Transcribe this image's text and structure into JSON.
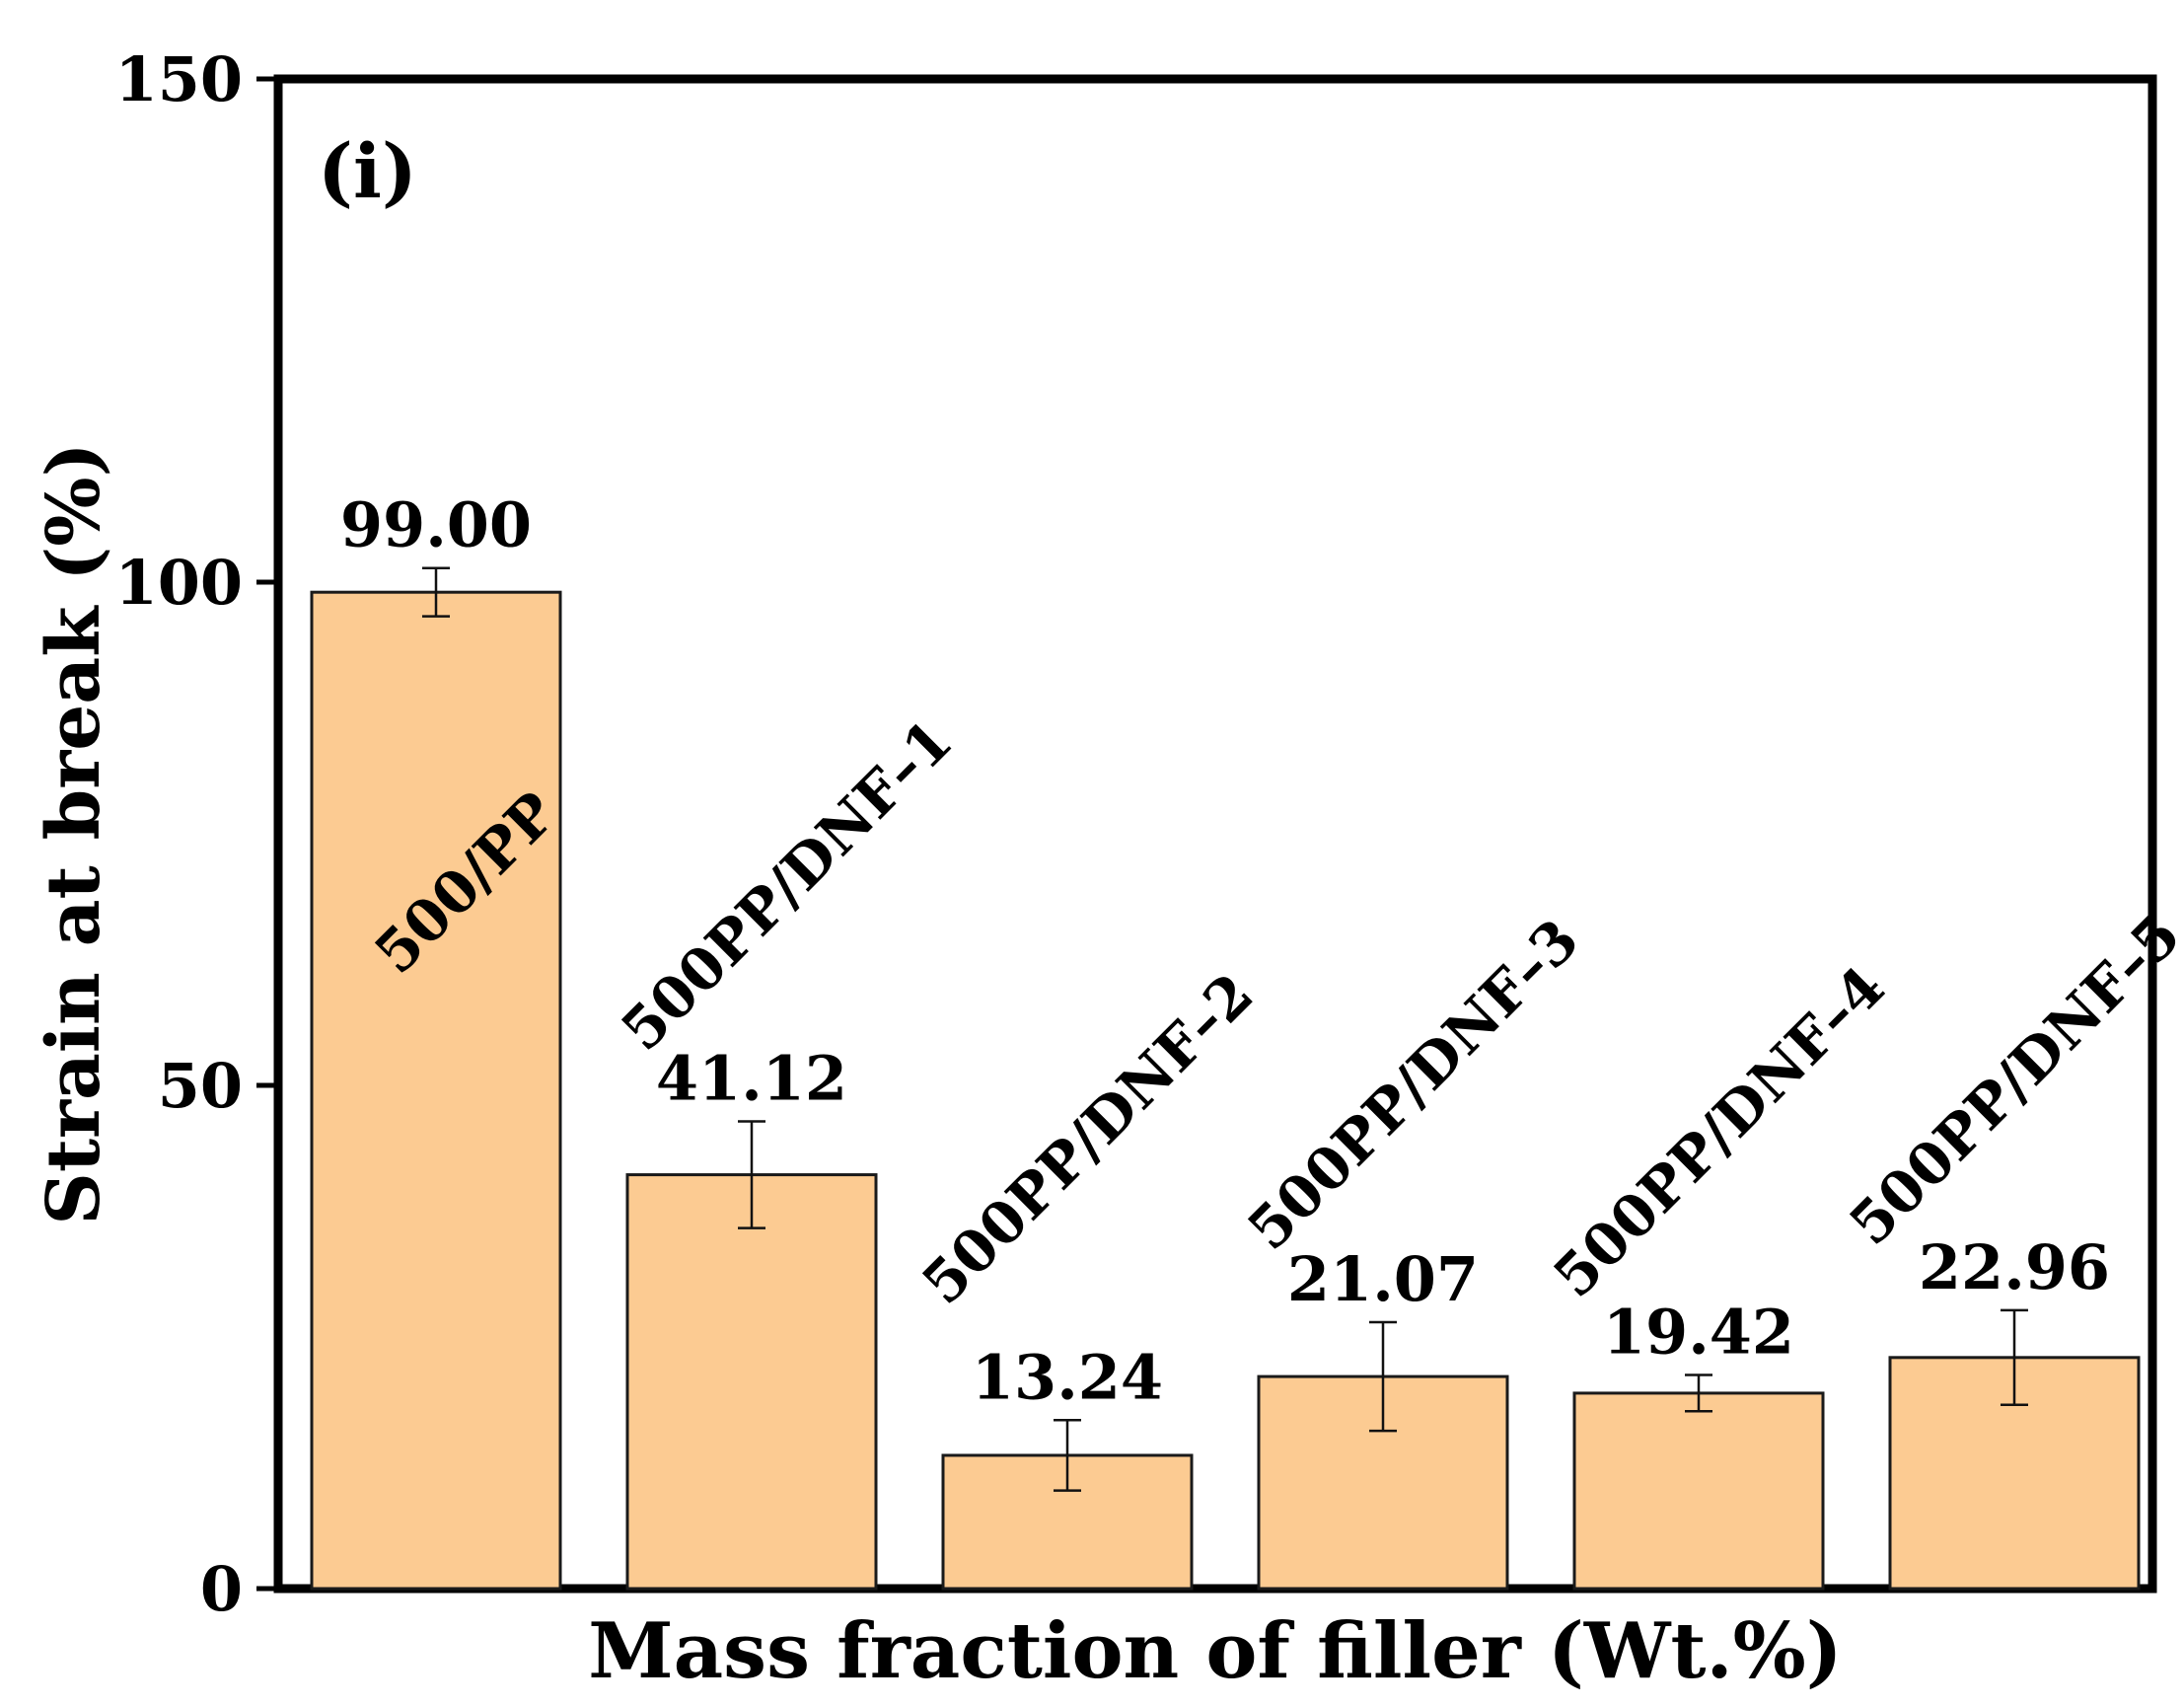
{
  "colors": {
    "bar_fill": "#FCCB92",
    "bar_stroke": "#1a1a1a",
    "axis": "#000000",
    "text": "#000000"
  },
  "chart_data": {
    "type": "bar",
    "panel_label": "(i)",
    "title": "",
    "xlabel": "Mass fraction of filler (Wt.%)",
    "ylabel": "Strain at break (%)",
    "ylim": [
      0,
      150
    ],
    "yticks": [
      0,
      50,
      100,
      150
    ],
    "ytick_labels": [
      "0",
      "50",
      "100",
      "150"
    ],
    "grid": false,
    "categories": [
      "500/PP",
      "500PP/DNF–1",
      "500PP/DNF–2",
      "500PP/DNF–3",
      "500PP/DNF–4",
      "500PP/DNF–5"
    ],
    "values": [
      99.0,
      41.12,
      13.24,
      21.07,
      19.42,
      22.96
    ],
    "value_labels": [
      "99.00",
      "41.12",
      "13.24",
      "21.07",
      "19.42",
      "22.96"
    ],
    "error": [
      2.4,
      5.3,
      3.5,
      5.4,
      1.8,
      4.7
    ]
  }
}
